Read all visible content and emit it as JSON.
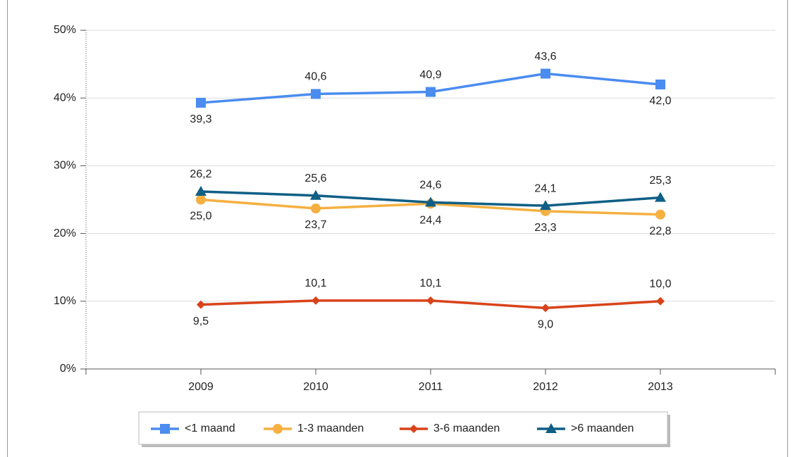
{
  "chart_data": {
    "type": "line",
    "categories": [
      "2009",
      "2010",
      "2011",
      "2012",
      "2013"
    ],
    "series": [
      {
        "name": "<1 maand",
        "color": "#4a8cf0",
        "marker": "square",
        "values": [
          39.3,
          40.6,
          40.9,
          43.6,
          42.0
        ],
        "value_labels": [
          "39,3",
          "40,6",
          "40,9",
          "43,6",
          "42,0"
        ]
      },
      {
        "name": "1-3 maanden",
        "color": "#f5b041",
        "marker": "circle",
        "values": [
          25.0,
          23.7,
          24.4,
          23.3,
          22.8
        ],
        "value_labels": [
          "25,0",
          "23,7",
          "24,4",
          "23,3",
          "22,8"
        ]
      },
      {
        "name": "3-6 maanden",
        "color": "#d9431a",
        "marker": "diamond",
        "values": [
          9.5,
          10.1,
          10.1,
          9.0,
          10.0
        ],
        "value_labels": [
          "9,5",
          "10,1",
          "10,1",
          "9,0",
          "10,0"
        ]
      },
      {
        "name": ">6 maanden",
        "color": "#0f5f86",
        "marker": "triangle",
        "values": [
          26.2,
          25.6,
          24.6,
          24.1,
          25.3
        ],
        "value_labels": [
          "26,2",
          "25,6",
          "24,6",
          "24,1",
          "25,3"
        ]
      }
    ],
    "ylim": [
      0,
      50
    ],
    "yticks": [
      {
        "value": 0,
        "label": "0%"
      },
      {
        "value": 10,
        "label": "10%"
      },
      {
        "value": 20,
        "label": "20%"
      },
      {
        "value": 30,
        "label": "30%"
      },
      {
        "value": 40,
        "label": "40%"
      },
      {
        "value": 50,
        "label": "50%"
      }
    ],
    "grid": true,
    "legend": "bottom"
  }
}
